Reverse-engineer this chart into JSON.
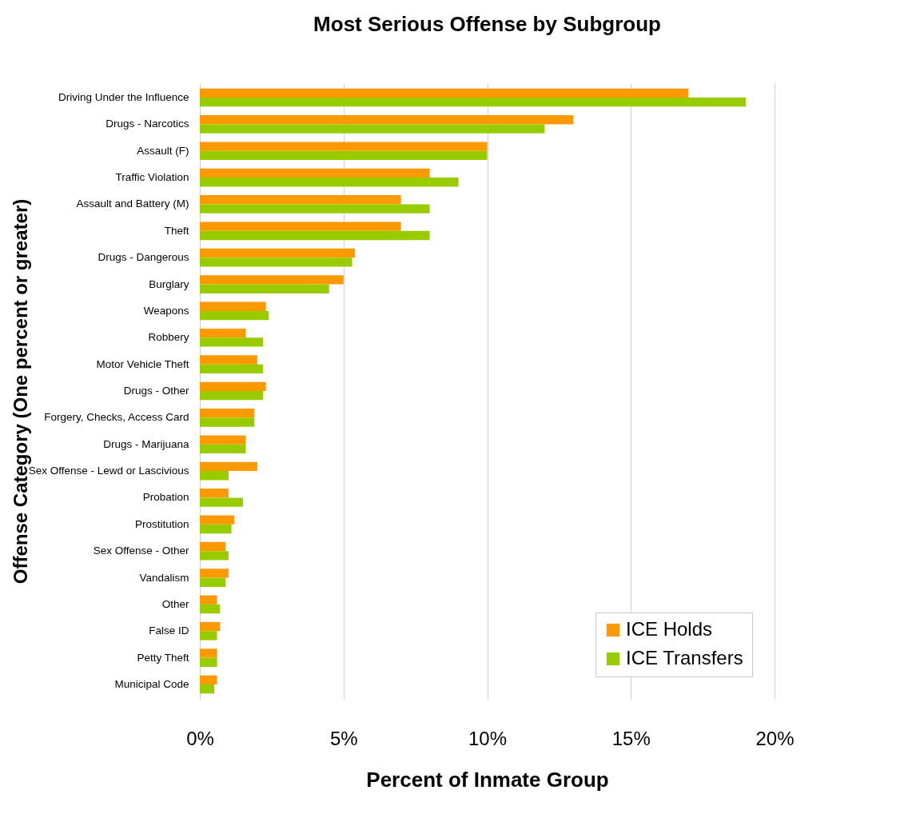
{
  "chart_data": {
    "type": "bar",
    "orientation": "horizontal",
    "title": "Most Serious Offense by Subgroup",
    "xlabel": "Percent of Inmate Group",
    "ylabel": "Offense Category (One percent or greater)",
    "categories": [
      "Driving Under the Influence",
      "Drugs - Narcotics",
      "Assault (F)",
      "Traffic Violation",
      "Assault and Battery (M)",
      "Theft",
      "Drugs - Dangerous",
      "Burglary",
      "Weapons",
      "Robbery",
      "Motor Vehicle Theft",
      "Drugs - Other",
      "Forgery, Checks, Access Card",
      "Drugs - Marijuana",
      "Sex Offense - Lewd or Lascivious",
      "Probation",
      "Prostitution",
      "Sex Offense - Other",
      "Vandalism",
      "Other",
      "False ID",
      "Petty Theft",
      "Municipal Code"
    ],
    "series": [
      {
        "name": "ICE Holds",
        "color": "#ff9900",
        "values": [
          17.0,
          13.0,
          10.0,
          8.0,
          7.0,
          7.0,
          5.4,
          5.0,
          2.3,
          1.6,
          2.0,
          2.3,
          1.9,
          1.6,
          2.0,
          1.0,
          1.2,
          0.9,
          1.0,
          0.6,
          0.7,
          0.6,
          0.6
        ]
      },
      {
        "name": "ICE Transfers",
        "color": "#99cc00",
        "values": [
          19.0,
          12.0,
          10.0,
          9.0,
          8.0,
          8.0,
          5.3,
          4.5,
          2.4,
          2.2,
          2.2,
          2.2,
          1.9,
          1.6,
          1.0,
          1.5,
          1.1,
          1.0,
          0.9,
          0.7,
          0.6,
          0.6,
          0.5
        ]
      }
    ],
    "xlim": [
      0,
      20
    ],
    "xticks": [
      {
        "value": 0,
        "label": "0%"
      },
      {
        "value": 5,
        "label": "5%"
      },
      {
        "value": 10,
        "label": "10%"
      },
      {
        "value": 15,
        "label": "15%"
      },
      {
        "value": 20,
        "label": "20%"
      }
    ],
    "grid": "x",
    "legend": "bottom right"
  }
}
